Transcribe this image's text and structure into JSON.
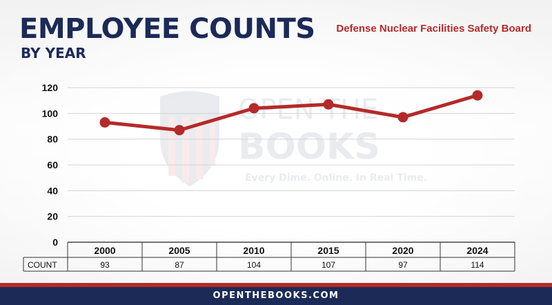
{
  "header": {
    "title": "EMPLOYEE COUNTS",
    "subtitle": "BY YEAR",
    "agency": "Defense Nuclear Facilities Safety Board"
  },
  "watermark": {
    "line1": "OPEN THE",
    "line2": "BOOKS",
    "tagline": "Every Dime. Online. In Real Time."
  },
  "table": {
    "row_label": "COUNT"
  },
  "footer": {
    "site": "OPENTHEBOOKS.COM"
  },
  "colors": {
    "navy": "#1b2a57",
    "accent_red": "#b52a2a",
    "line": "#b52a2a"
  },
  "chart_data": {
    "type": "line",
    "categories": [
      "2000",
      "2005",
      "2010",
      "2015",
      "2020",
      "2024"
    ],
    "series": [
      {
        "values": [
          93,
          87,
          104,
          107,
          97,
          114
        ]
      }
    ],
    "title": "EMPLOYEE COUNTS",
    "subtitle": "BY YEAR",
    "ylim": [
      0,
      120
    ],
    "yticks": [
      0,
      20,
      40,
      60,
      80,
      100,
      120
    ],
    "grid": true,
    "legend": "none"
  }
}
